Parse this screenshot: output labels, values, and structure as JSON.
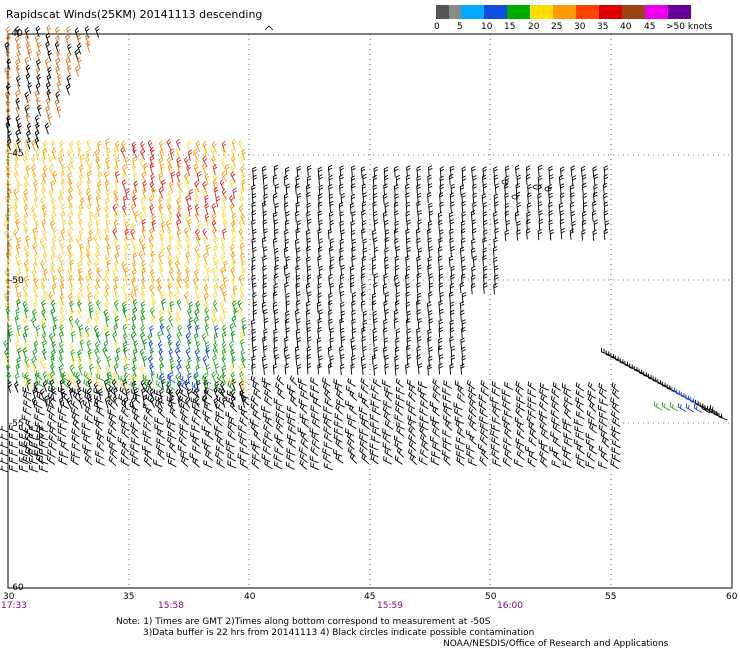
{
  "title": "Rapidscat Winds(25KM) 20141113 descending",
  "scale": {
    "colors": [
      "#555555",
      "#8a8a8a",
      "#00aaff",
      "#0066ff",
      "#1050e0",
      "#009900",
      "#22cc22",
      "#ffee00",
      "#ffcc00",
      "#ff9900",
      "#ff6600",
      "#ee3300",
      "#dd0000",
      "#993300",
      "#bb7744",
      "#cc66cc",
      "#ee00ee",
      "#aa00dd",
      "#440066"
    ],
    "labels": [
      "0",
      "5",
      "10",
      "15",
      "20",
      "25",
      "30",
      "35",
      "40",
      "45",
      ">50 knots"
    ]
  },
  "axes": {
    "lat_labels": [
      "-40",
      "-45",
      "-50",
      "-55",
      "-60"
    ],
    "lon_labels": [
      "30",
      "35",
      "40",
      "45",
      "50",
      "55",
      "60"
    ]
  },
  "times": [
    "17:33",
    "15:58",
    "15:59",
    "16:00"
  ],
  "notes": {
    "line1": "Note: 1) Times are GMT 2)Times along bottom correspond to measurement at -50S",
    "line2": "3)Data buffer is 22 hrs from 20141113 4) Black circles indicate possible contamination",
    "credit": "NOAA/NESDIS/Office of Research and Applications"
  }
}
